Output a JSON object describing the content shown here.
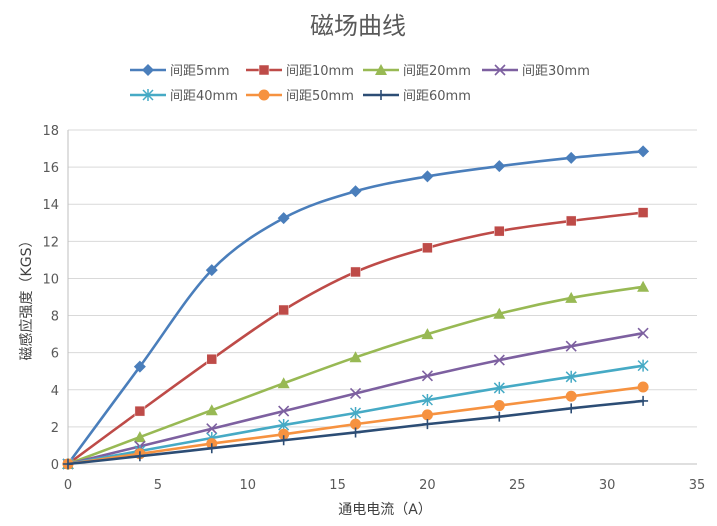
{
  "chart_data": {
    "type": "line",
    "title": "磁场曲线",
    "xlabel": "通电电流（A）",
    "ylabel": "磁感应强度（KGS）",
    "xlim": [
      0,
      35
    ],
    "ylim": [
      0,
      18
    ],
    "xticks": [
      0,
      5,
      10,
      15,
      20,
      25,
      30,
      35
    ],
    "yticks": [
      0,
      2,
      4,
      6,
      8,
      10,
      12,
      14,
      16,
      18
    ],
    "grid": "horizontal",
    "legend_position": "top",
    "x": [
      0,
      4,
      8,
      12,
      16,
      20,
      24,
      28,
      32
    ],
    "series": [
      {
        "name": "间距5mm",
        "color": "#4a7ebb",
        "marker": "diamond",
        "values": [
          0,
          5.25,
          10.45,
          13.25,
          14.7,
          15.5,
          16.05,
          16.5,
          16.85
        ]
      },
      {
        "name": "间距10mm",
        "color": "#be4b48",
        "marker": "square",
        "values": [
          0,
          2.85,
          5.65,
          8.3,
          10.35,
          11.65,
          12.55,
          13.1,
          13.55
        ]
      },
      {
        "name": "间距20mm",
        "color": "#98b954",
        "marker": "triangle",
        "values": [
          0,
          1.45,
          2.9,
          4.35,
          5.75,
          7.0,
          8.1,
          8.95,
          9.55
        ]
      },
      {
        "name": "间距30mm",
        "color": "#7d60a0",
        "marker": "x",
        "values": [
          0,
          0.95,
          1.9,
          2.85,
          3.8,
          4.75,
          5.6,
          6.35,
          7.05
        ]
      },
      {
        "name": "间距40mm",
        "color": "#46aac5",
        "marker": "asterisk",
        "values": [
          0,
          0.7,
          1.4,
          2.1,
          2.75,
          3.45,
          4.1,
          4.7,
          5.3
        ]
      },
      {
        "name": "间距50mm",
        "color": "#f69240",
        "marker": "circle",
        "values": [
          0,
          0.55,
          1.1,
          1.6,
          2.15,
          2.65,
          3.15,
          3.65,
          4.15
        ]
      },
      {
        "name": "间距60mm",
        "color": "#2c4d75",
        "marker": "plus",
        "values": [
          0,
          0.42,
          0.85,
          1.28,
          1.7,
          2.15,
          2.55,
          3.0,
          3.4
        ]
      }
    ]
  }
}
